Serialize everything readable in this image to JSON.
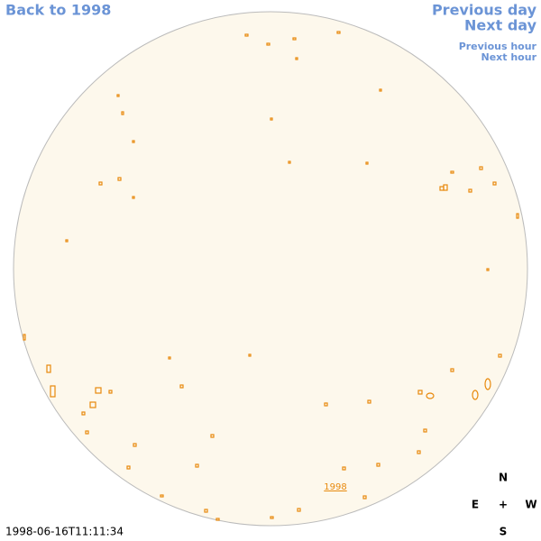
{
  "nav": {
    "back": "Back to 1998",
    "previous_day": "Previous day",
    "next_day": "Next day",
    "previous_hour": "Previous hour",
    "next_hour": "Next hour"
  },
  "disk": {
    "label": "1998"
  },
  "compass": {
    "north": "N",
    "east": "E",
    "center": "+",
    "west": "W",
    "south": "S"
  },
  "timestamp": "1998-06-16T11:11:34"
}
